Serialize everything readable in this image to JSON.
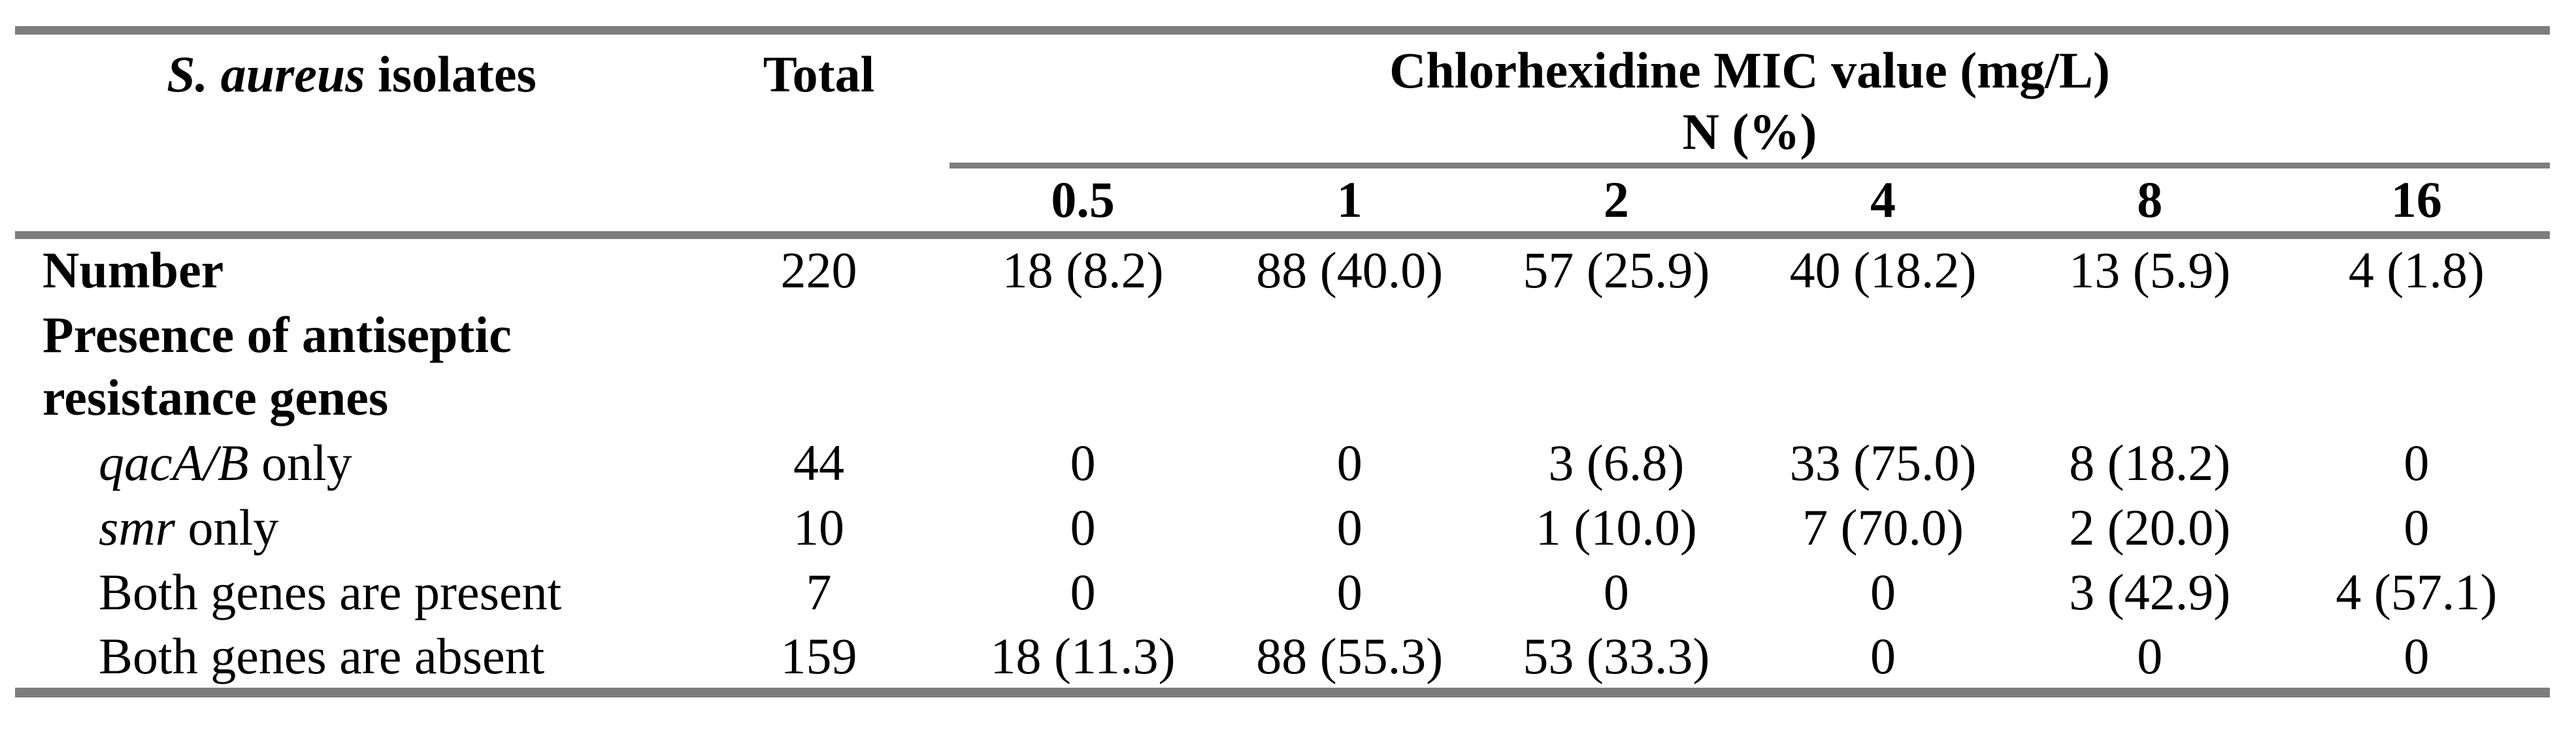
{
  "table": {
    "rule_color": "#7d7d7d",
    "header": {
      "col1_italic": "S. aureus",
      "col1_rest": " isolates",
      "total_label": "Total",
      "mic_title": "Chlorhexidine MIC value (mg/L)",
      "mic_subtitle": "N (%)",
      "mic_values": [
        "0.5",
        "1",
        "2",
        "4",
        "8",
        "16"
      ]
    },
    "rows": [
      {
        "bold": true,
        "indent": false,
        "tall": false,
        "label": [
          {
            "t": "Number"
          }
        ],
        "values": [
          "220",
          "18 (8.2)",
          "88 (40.0)",
          "57 (25.9)",
          "40 (18.2)",
          "13 (5.9)",
          "4 (1.8)"
        ]
      },
      {
        "bold": true,
        "indent": false,
        "tall": true,
        "label": [
          {
            "t": "Presence of antiseptic resistance genes"
          }
        ],
        "values": [
          "",
          "",
          "",
          "",
          "",
          "",
          ""
        ]
      },
      {
        "bold": false,
        "indent": true,
        "tall": false,
        "label": [
          {
            "t": "qacA/B",
            "i": true
          },
          {
            "t": " only"
          }
        ],
        "values": [
          "44",
          "0",
          "0",
          "3 (6.8)",
          "33 (75.0)",
          "8 (18.2)",
          "0"
        ]
      },
      {
        "bold": false,
        "indent": true,
        "tall": false,
        "label": [
          {
            "t": "smr",
            "i": true
          },
          {
            "t": " only"
          }
        ],
        "values": [
          "10",
          "0",
          "0",
          "1 (10.0)",
          "7 (70.0)",
          "2 (20.0)",
          "0"
        ]
      },
      {
        "bold": false,
        "indent": true,
        "tall": false,
        "label": [
          {
            "t": "Both genes are present"
          }
        ],
        "values": [
          "7",
          "0",
          "0",
          "0",
          "0",
          "3 (42.9)",
          "4 (57.1)"
        ]
      },
      {
        "bold": false,
        "indent": true,
        "tall": false,
        "label": [
          {
            "t": "Both genes are absent"
          }
        ],
        "values": [
          "159",
          "18 (11.3)",
          "88 (55.3)",
          "53 (33.3)",
          "0",
          "0",
          "0"
        ]
      }
    ]
  }
}
